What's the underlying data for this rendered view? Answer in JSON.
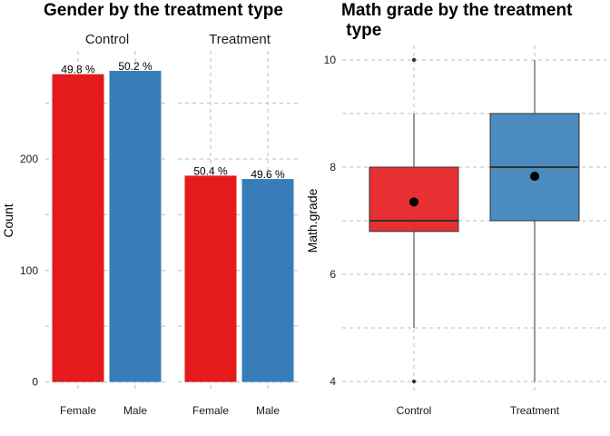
{
  "colors": {
    "female": "#e41a1c",
    "male": "#377eb8",
    "control_box": "#e41a1c",
    "treatment_box": "#377eb8"
  },
  "chart_data": [
    {
      "type": "bar",
      "title": "Gender by the treatment type",
      "xlabel": "",
      "ylabel": "Count",
      "ylim": [
        0,
        285
      ],
      "yticks": [
        0,
        100,
        200
      ],
      "grid": true,
      "panels": [
        {
          "name": "Control",
          "categories": [
            "Female",
            "Male"
          ],
          "values": [
            276,
            279
          ],
          "labels": [
            "49.8 %",
            "50.2 %"
          ]
        },
        {
          "name": "Treatment",
          "categories": [
            "Female",
            "Male"
          ],
          "values": [
            185,
            182
          ],
          "labels": [
            "50.4 %",
            "49.6 %"
          ]
        }
      ]
    },
    {
      "type": "box",
      "title": "Math grade by the treatment\n type",
      "title_lines": [
        "Math grade by the treatment",
        " type"
      ],
      "xlabel": "",
      "ylabel": "Math.grade",
      "ylim": [
        3.8,
        10.2
      ],
      "yticks": [
        4,
        6,
        8,
        10
      ],
      "grid": true,
      "categories": [
        "Control",
        "Treatment"
      ],
      "boxes": [
        {
          "name": "Control",
          "min": 5,
          "q1": 6.8,
          "median": 7,
          "q3": 8,
          "max": 9,
          "mean": 7.35,
          "outliers": [
            4,
            10
          ]
        },
        {
          "name": "Treatment",
          "min": 4,
          "q1": 7,
          "median": 8,
          "q3": 9,
          "max": 10,
          "mean": 7.83,
          "outliers": []
        }
      ]
    }
  ]
}
